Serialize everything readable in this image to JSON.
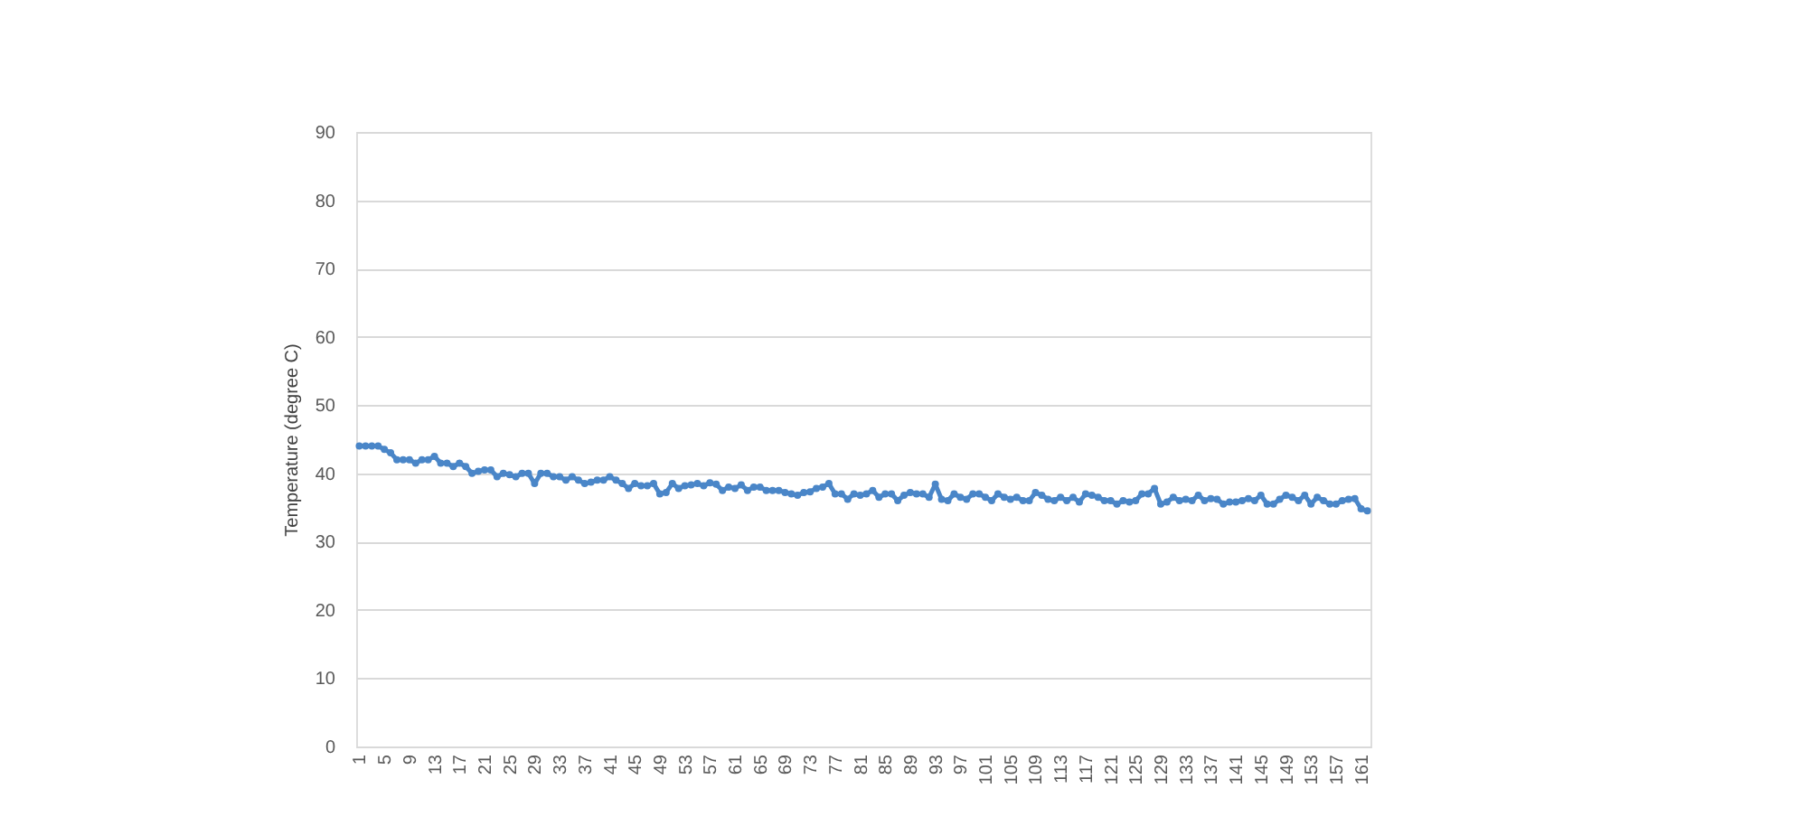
{
  "chart_data": {
    "type": "line",
    "ylabel": "Temperature    (degree C)",
    "categories": [
      "1",
      null,
      null,
      null,
      "5",
      null,
      null,
      null,
      "9",
      null,
      null,
      null,
      "13",
      null,
      null,
      null,
      "17",
      null,
      null,
      null,
      "21",
      null,
      null,
      null,
      "25",
      null,
      null,
      null,
      "29",
      null,
      null,
      null,
      "33",
      null,
      null,
      null,
      "37",
      null,
      null,
      null,
      "41",
      null,
      null,
      null,
      "45",
      null,
      null,
      null,
      "49",
      null,
      null,
      null,
      "53",
      null,
      null,
      null,
      "57",
      null,
      null,
      null,
      "61",
      null,
      null,
      null,
      "65",
      null,
      null,
      null,
      "69",
      null,
      null,
      null,
      "73",
      null,
      null,
      null,
      "77",
      null,
      null,
      null,
      "81",
      null,
      null,
      null,
      "85",
      null,
      null,
      null,
      "89",
      null,
      null,
      null,
      "93",
      null,
      null,
      null,
      "97",
      null,
      null,
      null,
      "101",
      null,
      null,
      null,
      "105",
      null,
      null,
      null,
      "109",
      null,
      null,
      null,
      "113",
      null,
      null,
      null,
      "117",
      null,
      null,
      null,
      "121",
      null,
      null,
      null,
      "125",
      null,
      null,
      null,
      "129",
      null,
      null,
      null,
      "133",
      null,
      null,
      null,
      "137",
      null,
      null,
      null,
      "141",
      null,
      null,
      null,
      "145",
      null,
      null,
      null,
      "149",
      null,
      null,
      null,
      "153",
      null,
      null,
      null,
      "157",
      null,
      null,
      null,
      "161",
      null
    ],
    "values": [
      44,
      44,
      44,
      44,
      43.5,
      43,
      42,
      42,
      42,
      41.5,
      42,
      42,
      42.5,
      41.5,
      41.5,
      41,
      41.5,
      41,
      40,
      40.3,
      40.5,
      40.5,
      39.5,
      40,
      39.8,
      39.5,
      40,
      40,
      38.5,
      40,
      40,
      39.5,
      39.5,
      39,
      39.5,
      39,
      38.5,
      38.7,
      39,
      39,
      39.5,
      39,
      38.5,
      37.8,
      38.5,
      38.2,
      38.2,
      38.5,
      37,
      37.2,
      38.5,
      37.8,
      38.2,
      38.3,
      38.5,
      38.2,
      38.6,
      38.4,
      37.5,
      38,
      37.8,
      38.3,
      37.5,
      38,
      38,
      37.5,
      37.5,
      37.5,
      37.2,
      37,
      36.8,
      37.2,
      37.3,
      37.8,
      38,
      38.5,
      37,
      37,
      36.2,
      37,
      36.8,
      37,
      37.5,
      36.5,
      37,
      37,
      36,
      36.8,
      37.2,
      37,
      37,
      36.5,
      38.4,
      36.2,
      36,
      37,
      36.5,
      36.2,
      37,
      37,
      36.5,
      36,
      37,
      36.5,
      36.2,
      36.5,
      36,
      36,
      37.2,
      36.8,
      36.2,
      36,
      36.5,
      36,
      36.5,
      35.8,
      37,
      36.8,
      36.5,
      36,
      36,
      35.5,
      36,
      35.8,
      36,
      37,
      37,
      37.8,
      35.5,
      35.8,
      36.5,
      36,
      36.2,
      36,
      36.8,
      36,
      36.3,
      36.2,
      35.5,
      35.8,
      35.8,
      36,
      36.3,
      36,
      36.8,
      35.5,
      35.5,
      36.2,
      36.8,
      36.5,
      36,
      36.8,
      35.5,
      36.5,
      36,
      35.5,
      35.5,
      36,
      36.2,
      36.3,
      34.8,
      34.5
    ],
    "color": "#4a86c8",
    "marker": "circle",
    "ylim": [
      0,
      90
    ],
    "yticks": [
      0,
      10,
      20,
      30,
      40,
      50,
      60,
      70,
      80,
      90
    ],
    "grid": "y"
  }
}
